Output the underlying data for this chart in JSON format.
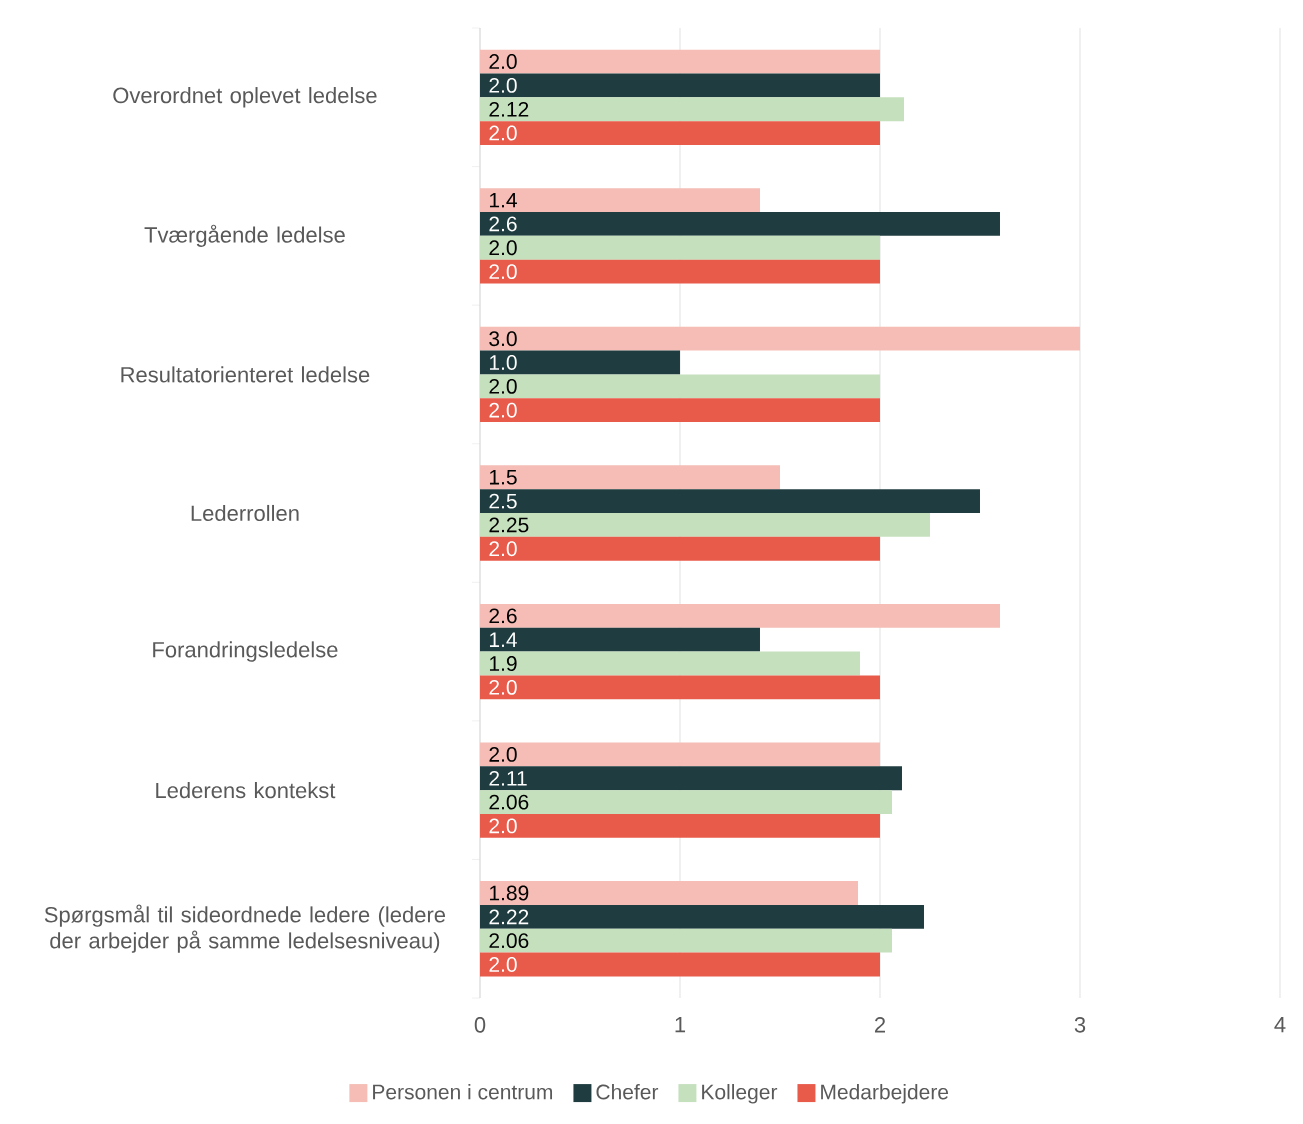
{
  "chart_data": {
    "type": "bar",
    "orientation": "horizontal",
    "categories": [
      "Overordnet oplevet ledelse",
      "Tværgående ledelse",
      "Resultatorienteret ledelse",
      "Lederrollen",
      "Forandringsledelse",
      "Lederens kontekst",
      "Spørgsmål til sideordnede ledere (ledere der arbejder på samme ledelsesniveau)"
    ],
    "series": [
      {
        "name": "Personen i centrum",
        "color": "#f5bdb5",
        "values": [
          2.0,
          1.4,
          3.0,
          1.5,
          2.6,
          2.0,
          1.89
        ],
        "value_labels": [
          "2.0",
          "1.4",
          "3.0",
          "1.5",
          "2.6",
          "2.0",
          "1.89"
        ]
      },
      {
        "name": "Chefer",
        "color": "#1f3d40",
        "values": [
          2.0,
          2.6,
          1.0,
          2.5,
          1.4,
          2.11,
          2.22
        ],
        "value_labels": [
          "2.0",
          "2.6",
          "1.0",
          "2.5",
          "1.4",
          "2.11",
          "2.22"
        ]
      },
      {
        "name": "Kolleger",
        "color": "#c5e0bd",
        "values": [
          2.12,
          2.0,
          2.0,
          2.25,
          1.9,
          2.06,
          2.06
        ],
        "value_labels": [
          "2.12",
          "2.0",
          "2.0",
          "2.25",
          "1.9",
          "2.06",
          "2.06"
        ]
      },
      {
        "name": "Medarbejdere",
        "color": "#e85a4a",
        "values": [
          2.0,
          2.0,
          2.0,
          2.0,
          2.0,
          2.0,
          2.0
        ],
        "value_labels": [
          "2.0",
          "2.0",
          "2.0",
          "2.0",
          "2.0",
          "2.0",
          "2.0"
        ]
      }
    ],
    "xlim": [
      0,
      4
    ],
    "xticks": [
      0,
      1,
      2,
      3,
      4
    ],
    "grid": "x",
    "legend": "bottom"
  }
}
